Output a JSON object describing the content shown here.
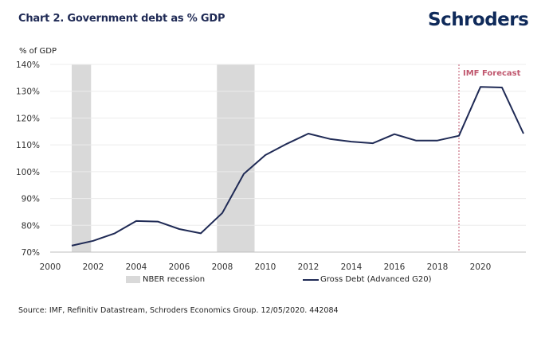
{
  "header": {
    "title": "Chart 2. Government debt as % GDP",
    "brand": "Schroders"
  },
  "footer": {
    "source": "Source: IMF, Refinitiv Datastream, Schroders Economics Group. 12/05/2020. 442084"
  },
  "colors": {
    "line": "#1f2a55",
    "recession": "#d9d9d9",
    "forecast": "#c0576e",
    "grid": "#ececec",
    "axis": "#bfbfbf"
  },
  "chart_data": {
    "type": "line",
    "title": "Chart 2. Government debt as % GDP",
    "xlabel": "",
    "ylabel": "% of GDP",
    "xlim": [
      2000,
      2022
    ],
    "ylim": [
      70,
      140
    ],
    "grid": true,
    "x_ticks": [
      "2000",
      "2002",
      "2004",
      "2006",
      "2008",
      "2010",
      "2012",
      "2014",
      "2016",
      "2018",
      "2020"
    ],
    "x_tick_values": [
      2000,
      2002,
      2004,
      2006,
      2008,
      2010,
      2012,
      2014,
      2016,
      2018,
      2020
    ],
    "y_ticks": [
      "70%",
      "80%",
      "90%",
      "100%",
      "110%",
      "120%",
      "130%",
      "140%"
    ],
    "y_tick_values": [
      70,
      80,
      90,
      100,
      110,
      120,
      130,
      140
    ],
    "series": [
      {
        "name": "Gross Debt (Advanced G20)",
        "x": [
          2001,
          2002,
          2003,
          2004,
          2005,
          2006,
          2007,
          2008,
          2009,
          2010,
          2011,
          2012,
          2013,
          2014,
          2015,
          2016,
          2017,
          2018,
          2019,
          2020,
          2021,
          2022
        ],
        "values": [
          72.4,
          74.2,
          77.0,
          81.6,
          81.4,
          78.6,
          77.0,
          84.6,
          99.2,
          106.2,
          110.4,
          114.2,
          112.2,
          111.2,
          110.6,
          114.0,
          111.6,
          111.6,
          113.4,
          131.6,
          131.4,
          114.2
        ]
      }
    ],
    "shaded_regions": [
      {
        "name": "NBER recession",
        "start": 2001.0,
        "end": 2001.9
      },
      {
        "name": "NBER recession",
        "start": 2007.75,
        "end": 2009.5
      }
    ],
    "annotations": [
      {
        "type": "vline",
        "x": 2019.0,
        "label": "IMF Forecast"
      }
    ],
    "legend": {
      "placement": "bottom",
      "entries": [
        "NBER recession",
        "Gross Debt (Advanced G20)"
      ]
    }
  }
}
